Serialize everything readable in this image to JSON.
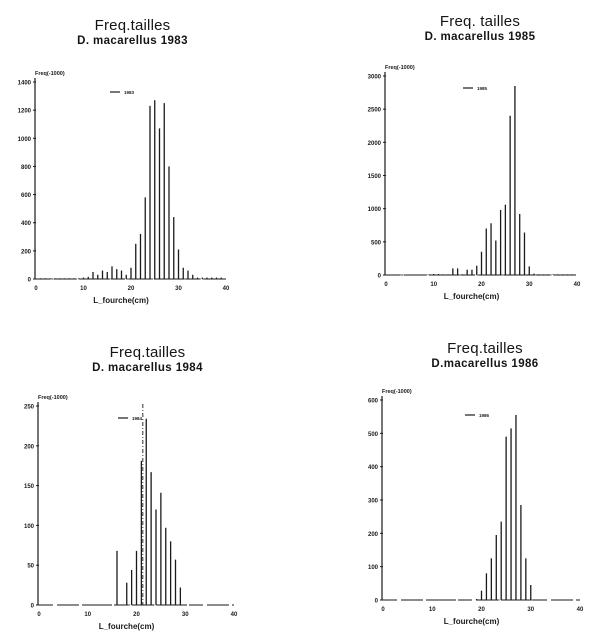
{
  "charts": [
    {
      "id": "1983",
      "title": "Freq.tailles",
      "subtitle": "D. macarellus 1983",
      "ylabel": "Freq(-1000)",
      "xlabel": "L_fourche(cm)",
      "legend": "1983",
      "yticks": [
        "1400",
        "1200",
        "1000",
        "800",
        "600",
        "400",
        "200",
        "0"
      ],
      "xticks": [
        "0",
        "10",
        "20",
        "30",
        "40"
      ]
    },
    {
      "id": "1985",
      "title": "Freq. tailles",
      "subtitle": "D. macarellus 1985",
      "ylabel": "Freq(-1000)",
      "xlabel": "L_fourche(cm)",
      "legend": "1985",
      "yticks": [
        "3000",
        "2500",
        "2000",
        "1500",
        "1000",
        "500",
        "0"
      ],
      "xticks": [
        "0",
        "10",
        "20",
        "30",
        "40"
      ]
    },
    {
      "id": "1984",
      "title": "Freq.tailles",
      "subtitle": "D. macarellus 1984",
      "ylabel": "Freq(-1000)",
      "xlabel": "L_fourche(cm)",
      "legend": "1984",
      "yticks": [
        "250",
        "200",
        "150",
        "100",
        "50",
        "0"
      ],
      "xticks": [
        "0",
        "10",
        "20",
        "30",
        "40"
      ]
    },
    {
      "id": "1986",
      "title": "Freq.tailles",
      "subtitle": "D.macarellus 1986",
      "ylabel": "Freq(-1000)",
      "xlabel": "L_fourche(cm)",
      "legend": "1986",
      "yticks": [
        "600",
        "500",
        "400",
        "300",
        "200",
        "100",
        "0"
      ],
      "xticks": [
        "0",
        "10",
        "20",
        "30",
        "40"
      ]
    }
  ],
  "chart_data": [
    {
      "type": "bar",
      "title": "Freq.tailles",
      "subtitle": "D. macarellus 1983",
      "xlabel": "L_fourche(cm)",
      "ylabel": "Freq(-1000)",
      "legend": [
        "1983"
      ],
      "xlim": [
        0,
        40
      ],
      "ylim": [
        0,
        1400
      ],
      "grid": false,
      "x": [
        1,
        2,
        3,
        4,
        5,
        6,
        7,
        8,
        9,
        10,
        11,
        12,
        13,
        14,
        15,
        16,
        17,
        18,
        19,
        20,
        21,
        22,
        23,
        24,
        25,
        26,
        27,
        28,
        29,
        30,
        31,
        32,
        33,
        34,
        35,
        36,
        37,
        38,
        39
      ],
      "values": [
        5,
        5,
        5,
        5,
        5,
        5,
        5,
        5,
        5,
        10,
        15,
        50,
        30,
        60,
        50,
        90,
        70,
        60,
        30,
        80,
        250,
        320,
        580,
        1230,
        1270,
        1070,
        1250,
        800,
        440,
        210,
        80,
        60,
        30,
        10,
        10,
        10,
        10,
        10,
        10
      ]
    },
    {
      "type": "bar",
      "title": "Freq. tailles",
      "subtitle": "D. macarellus 1985",
      "xlabel": "L_fourche(cm)",
      "ylabel": "Freq(-1000)",
      "legend": [
        "1985"
      ],
      "xlim": [
        0,
        40
      ],
      "ylim": [
        0,
        3000
      ],
      "grid": false,
      "x": [
        1,
        2,
        3,
        4,
        5,
        6,
        7,
        8,
        9,
        10,
        11,
        12,
        13,
        14,
        15,
        16,
        17,
        18,
        19,
        20,
        21,
        22,
        23,
        24,
        25,
        26,
        27,
        28,
        29,
        30,
        31,
        32,
        33,
        34,
        35,
        36,
        37,
        38,
        39
      ],
      "values": [
        5,
        5,
        5,
        5,
        5,
        5,
        5,
        5,
        10,
        15,
        15,
        10,
        10,
        100,
        100,
        10,
        80,
        80,
        140,
        350,
        700,
        780,
        520,
        980,
        1060,
        2400,
        2850,
        920,
        640,
        130,
        20,
        10,
        10,
        10,
        10,
        10,
        10,
        10,
        10
      ]
    },
    {
      "type": "bar",
      "title": "Freq.tailles",
      "subtitle": "D. macarellus 1984",
      "xlabel": "L_fourche(cm)",
      "ylabel": "Freq(-1000)",
      "legend": [
        "1984"
      ],
      "xlim": [
        0,
        40
      ],
      "ylim": [
        0,
        250
      ],
      "grid": false,
      "x": [
        16,
        17,
        18,
        19,
        20,
        21,
        22,
        23,
        24,
        25,
        26,
        27,
        28,
        29
      ],
      "values": [
        68,
        0,
        28,
        44,
        68,
        181,
        234,
        167,
        120,
        141,
        97,
        80,
        57,
        22
      ],
      "annotations": [
        {
          "type": "dashed-vline",
          "x": 21.3
        }
      ]
    },
    {
      "type": "bar",
      "title": "Freq.tailles",
      "subtitle": "D.macarellus 1986",
      "xlabel": "L_fourche(cm)",
      "ylabel": "Freq(-1000)",
      "legend": [
        "1986"
      ],
      "xlim": [
        0,
        40
      ],
      "ylim": [
        0,
        600
      ],
      "grid": false,
      "x": [
        19,
        20,
        21,
        22,
        23,
        24,
        25,
        26,
        27,
        28,
        29,
        30
      ],
      "values": [
        3,
        28,
        80,
        125,
        195,
        235,
        490,
        515,
        555,
        285,
        125,
        45
      ]
    }
  ]
}
